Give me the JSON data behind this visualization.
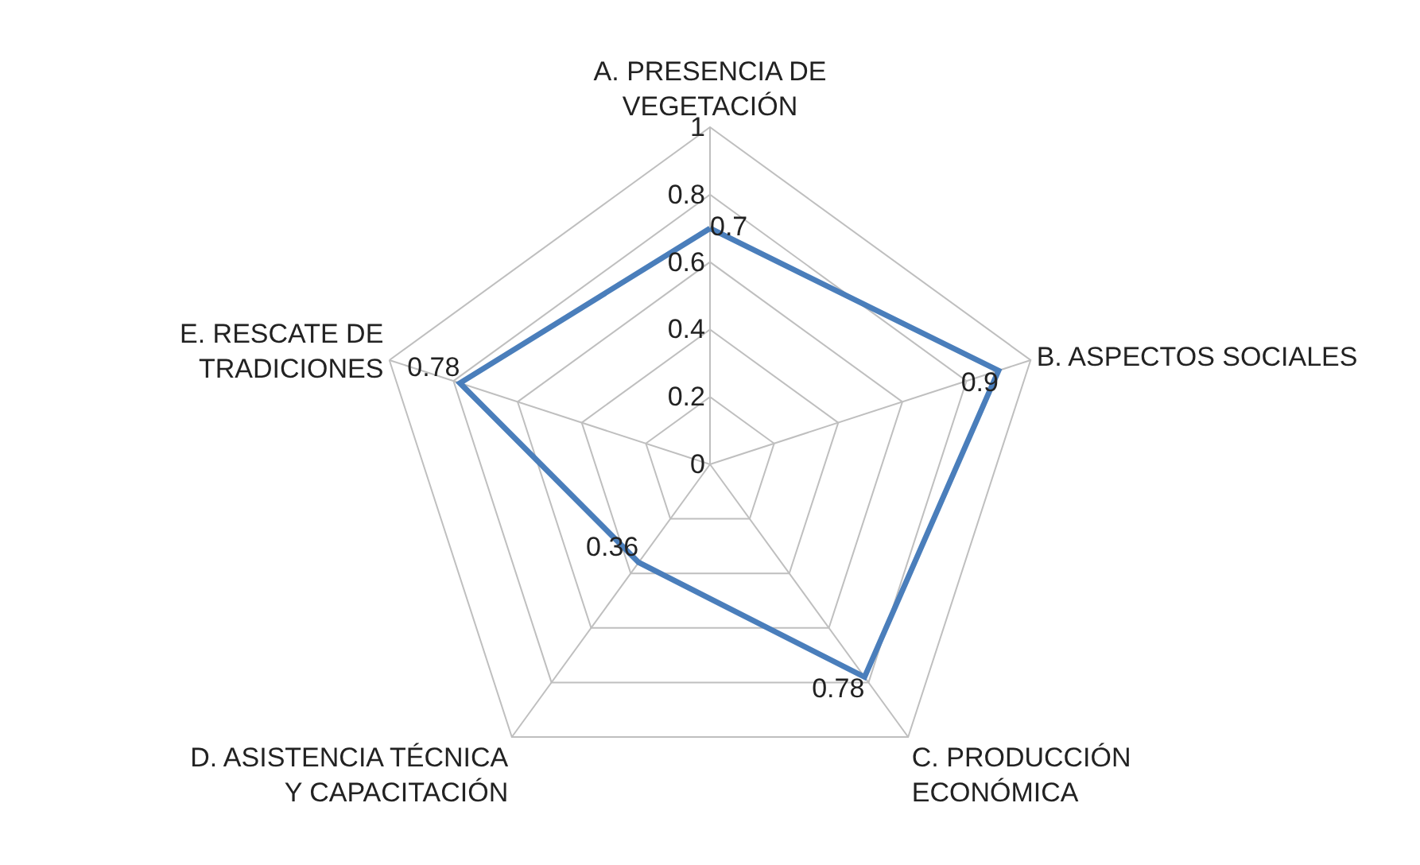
{
  "chart_data": {
    "type": "radar",
    "categories": [
      "A. PRESENCIA DE VEGETACIÓN",
      "B. ASPECTOS SOCIALES",
      "C. PRODUCCIÓN ECONÓMICA",
      "D. ASISTENCIA TÉCNICA Y CAPACITACIÓN",
      "E. RESCATE DE TRADICIONES"
    ],
    "series": [
      {
        "color": "#4a7ebb",
        "values": [
          0.7,
          0.9,
          0.78,
          0.36,
          0.78
        ]
      }
    ],
    "ylim": [
      0,
      1
    ],
    "yticks": [
      0,
      0.2,
      0.4,
      0.6,
      0.8,
      1
    ],
    "grid": true,
    "data_labels": true,
    "marker": "none",
    "line_style": "solid"
  }
}
